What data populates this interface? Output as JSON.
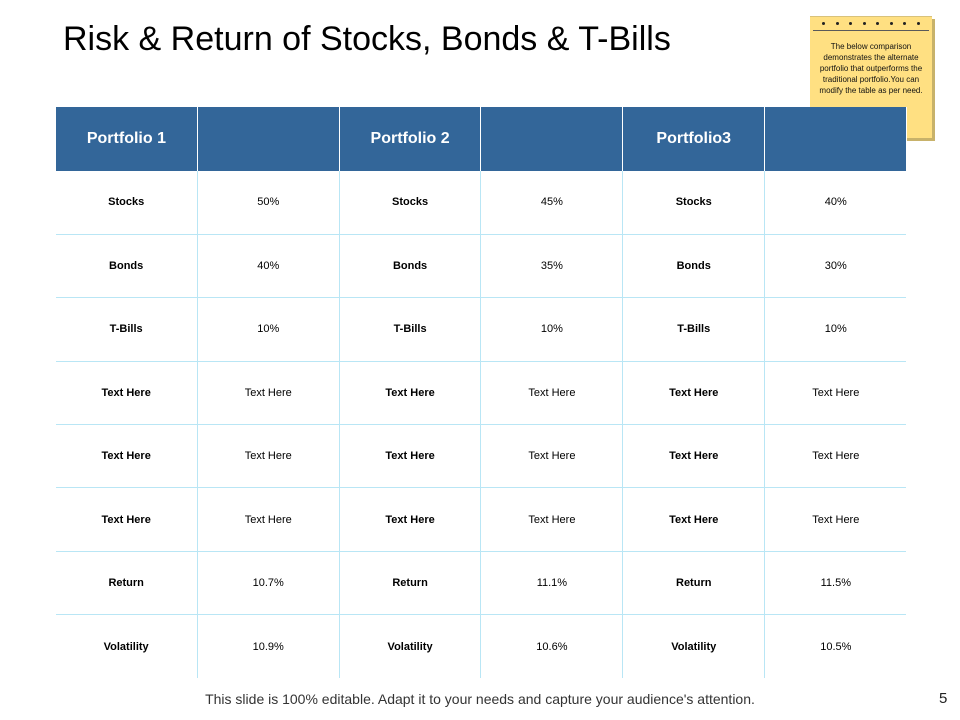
{
  "slide": {
    "title": "Risk & Return of Stocks, Bonds & T-Bills",
    "footer": "This slide is 100% editable. Adapt it to your needs and capture your audience's attention.",
    "page_number": "5"
  },
  "note": {
    "text": "The below comparison demonstrates the alternate portfolio that outperforms the traditional portfolio.You can modify the table as per need."
  },
  "table": {
    "headers": [
      "Portfolio 1",
      "",
      "Portfolio 2",
      "",
      "Portfolio3",
      ""
    ],
    "rows": [
      [
        "Stocks",
        "50%",
        "Stocks",
        "45%",
        "Stocks",
        "40%"
      ],
      [
        "Bonds",
        "40%",
        "Bonds",
        "35%",
        "Bonds",
        "30%"
      ],
      [
        "T-Bills",
        "10%",
        "T-Bills",
        "10%",
        "T-Bills",
        "10%"
      ],
      [
        "Text Here",
        "Text Here",
        "Text Here",
        "Text Here",
        "Text Here",
        "Text Here"
      ],
      [
        "Text Here",
        "Text Here",
        "Text Here",
        "Text Here",
        "Text Here",
        "Text Here"
      ],
      [
        "Text Here",
        "Text Here",
        "Text Here",
        "Text Here",
        "Text Here",
        "Text Here"
      ],
      [
        "Return",
        "10.7%",
        "Return",
        "11.1%",
        "Return",
        "11.5%"
      ],
      [
        "Volatility",
        "10.9%",
        "Volatility",
        "10.6%",
        "Volatility",
        "10.5%"
      ]
    ]
  },
  "colors": {
    "header_bg": "#336699",
    "header_text": "#ffffff",
    "grid_line": "#b9e6f5",
    "note_bg": "#ffe082"
  }
}
